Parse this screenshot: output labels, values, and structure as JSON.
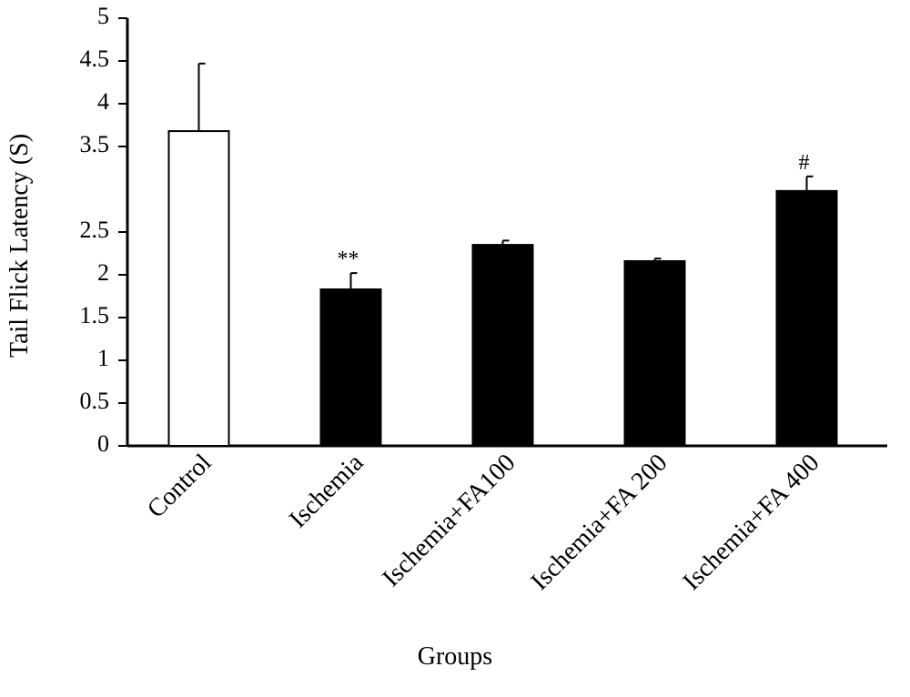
{
  "chart_data": {
    "type": "bar",
    "categories": [
      "Control",
      "Ischemia",
      "Ischemia+FA100",
      "Ischemia+FA 200",
      "Ischemia+FA 400"
    ],
    "values": [
      3.68,
      1.83,
      2.35,
      2.16,
      2.98
    ],
    "errors": [
      0.79,
      0.19,
      0.05,
      0.03,
      0.17
    ],
    "colors": [
      "#ffffff",
      "#000000",
      "#000000",
      "#000000",
      "#000000"
    ],
    "edge_color": "#000000",
    "annotations": [
      {
        "text": "**",
        "category": "Ischemia"
      },
      {
        "text": "#",
        "category": "Ischemia+FA 400"
      }
    ],
    "xlabel": "Groups",
    "ylabel": "Tail Flick Latency (S)",
    "ylim": [
      0,
      5
    ],
    "yticks": [
      0,
      0.5,
      1,
      1.5,
      2,
      2.5,
      3.5,
      4,
      4.5,
      5
    ],
    "grid": false
  }
}
